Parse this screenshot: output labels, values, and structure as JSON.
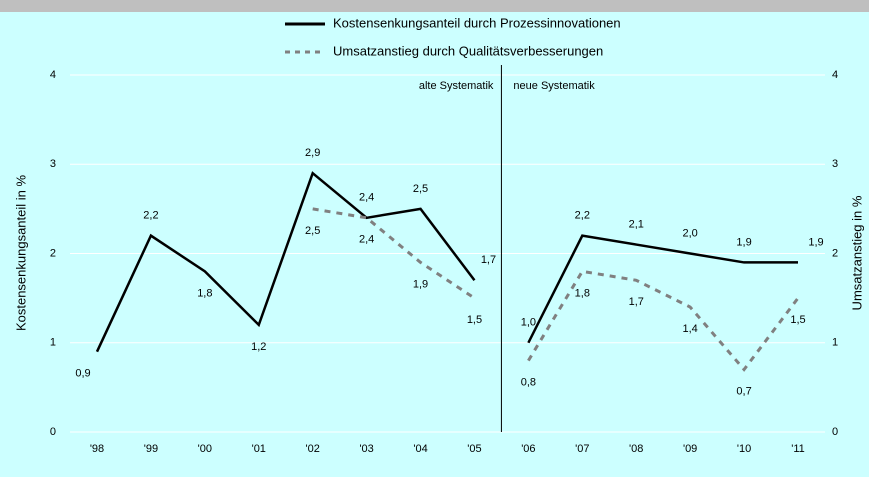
{
  "chart_data": {
    "type": "line",
    "categories": [
      "'98",
      "'99",
      "'00",
      "'01",
      "'02",
      "'03",
      "'04",
      "'05",
      "'06",
      "'07",
      "'08",
      "'09",
      "'10",
      "'11"
    ],
    "series": [
      {
        "name": "Kostensenkungsanteil durch Prozessinnovationen",
        "color": "#000000",
        "dash": false,
        "values": [
          0.9,
          2.2,
          1.8,
          1.2,
          2.9,
          2.4,
          2.5,
          1.7,
          1.0,
          2.2,
          2.1,
          2.0,
          1.9,
          1.9
        ],
        "value_labels": [
          "0,9",
          "2,2",
          "1,8",
          "1,2",
          "2,9",
          "2,4",
          "2,5",
          "1,7",
          "1,0",
          "2,2",
          "2,1",
          "2,0",
          "1,9",
          "1,9"
        ]
      },
      {
        "name": "Umsatzanstieg durch Qualitätsverbesserungen",
        "color": "#808080",
        "dash": true,
        "axis": "y2",
        "values": [
          null,
          null,
          null,
          null,
          2.5,
          2.4,
          1.9,
          1.5,
          0.8,
          1.8,
          1.7,
          1.4,
          0.7,
          1.5
        ],
        "value_labels": [
          null,
          null,
          null,
          null,
          "2,5",
          "2,4",
          "1,9",
          "1,5",
          "0,8",
          "1,8",
          "1,7",
          "1,4",
          "0,7",
          "1,5"
        ]
      }
    ],
    "ylabel": "Kostensenkungsanteil in %",
    "y2label": "Umsatzanstieg in %",
    "ylim": [
      0,
      4
    ],
    "yticks": [
      0,
      1,
      2,
      3,
      4
    ],
    "y2lim": [
      0,
      4
    ],
    "y2ticks": [
      0,
      1,
      2,
      3,
      4
    ],
    "grid": true,
    "annotations": [
      "alte Systematik",
      "neue Systematik"
    ],
    "divider_after": "'05"
  }
}
